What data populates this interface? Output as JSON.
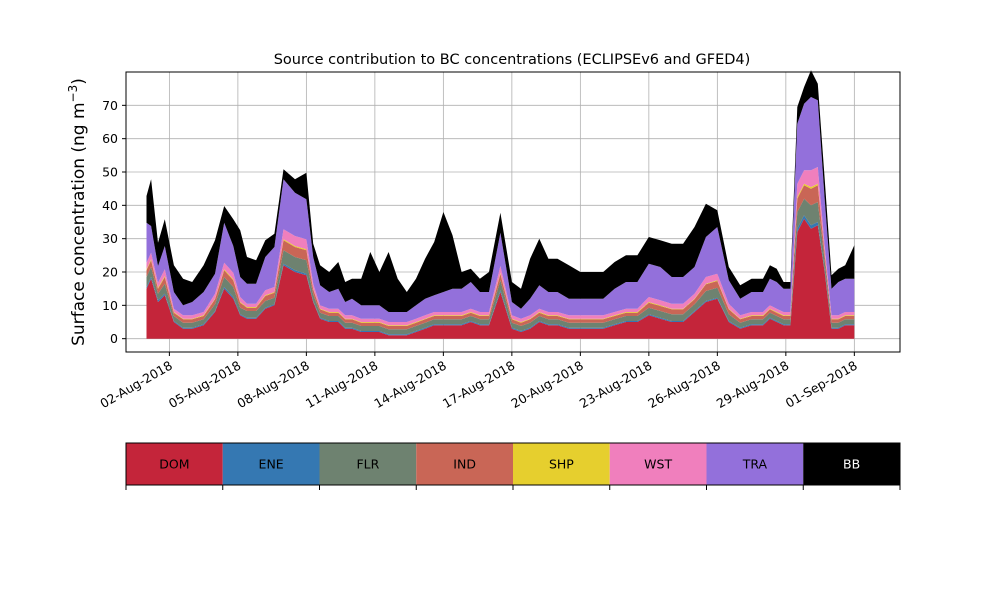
{
  "chart_data": {
    "type": "area",
    "title": "Source contribution to BC concentrations (ECLIPSEv6 and GFED4)",
    "ylabel_main": "Surface concentration (ng m",
    "ylabel_exp": "−3",
    "ylabel_close": ")",
    "xlabel": "",
    "ylim": [
      -4,
      80
    ],
    "yticks": [
      0,
      10,
      20,
      30,
      40,
      50,
      60,
      70
    ],
    "xlim_days": [
      -0.9,
      33.0
    ],
    "xticks": [
      {
        "label": "02-Aug-2018",
        "day": 1
      },
      {
        "label": "05-Aug-2018",
        "day": 4
      },
      {
        "label": "08-Aug-2018",
        "day": 7
      },
      {
        "label": "11-Aug-2018",
        "day": 10
      },
      {
        "label": "14-Aug-2018",
        "day": 13
      },
      {
        "label": "17-Aug-2018",
        "day": 16
      },
      {
        "label": "20-Aug-2018",
        "day": 19
      },
      {
        "label": "23-Aug-2018",
        "day": 22
      },
      {
        "label": "26-Aug-2018",
        "day": 25
      },
      {
        "label": "29-Aug-2018",
        "day": 28
      },
      {
        "label": "01-Sep-2018",
        "day": 31
      }
    ],
    "grid": true,
    "legend_position": "below",
    "x_day_zero": "01-Aug-2018",
    "x": [
      0.0,
      0.2,
      0.5,
      0.8,
      1.2,
      1.6,
      2.0,
      2.5,
      3.0,
      3.4,
      3.8,
      4.1,
      4.4,
      4.8,
      5.2,
      5.6,
      6.0,
      6.5,
      7.0,
      7.3,
      7.6,
      8.0,
      8.4,
      8.7,
      9.0,
      9.4,
      9.8,
      10.2,
      10.6,
      11.0,
      11.4,
      11.8,
      12.2,
      12.6,
      13.0,
      13.4,
      13.8,
      14.2,
      14.6,
      15.0,
      15.5,
      16.0,
      16.4,
      16.8,
      17.2,
      17.6,
      18.0,
      18.5,
      19.0,
      19.5,
      20.0,
      20.5,
      21.0,
      21.5,
      22.0,
      22.5,
      23.0,
      23.5,
      24.0,
      24.5,
      25.0,
      25.5,
      26.0,
      26.5,
      27.0,
      27.3,
      27.6,
      27.9,
      28.2,
      28.5,
      28.8,
      29.1,
      29.4,
      29.7,
      30.0,
      30.3,
      30.6,
      31.0
    ],
    "series": [
      {
        "name": "DOM",
        "color": "#c4253a",
        "values": [
          15,
          18,
          11,
          13,
          5,
          3,
          3,
          4,
          8,
          15,
          12,
          7,
          6,
          6,
          9,
          10,
          22,
          20,
          19,
          11,
          6,
          5,
          5,
          3,
          3,
          2,
          2,
          2,
          1,
          1,
          1,
          2,
          3,
          4,
          4,
          4,
          4,
          5,
          4,
          4,
          14,
          3,
          2,
          3,
          5,
          4,
          4,
          3,
          3,
          3,
          3,
          4,
          5,
          5,
          7,
          6,
          5,
          5,
          8,
          11,
          12,
          5,
          3,
          4,
          4,
          6,
          5,
          4,
          4,
          32,
          36,
          33,
          34,
          20,
          3,
          3,
          4,
          4
        ]
      },
      {
        "name": "ENE",
        "color": "#3578b2",
        "values": [
          0.5,
          0.5,
          0.5,
          0.5,
          0.3,
          0.3,
          0.3,
          0.3,
          0.3,
          0.5,
          0.5,
          0.3,
          0.3,
          0.3,
          0.3,
          0.3,
          0.5,
          0.5,
          0.5,
          0.3,
          0.3,
          0.3,
          0.3,
          0.3,
          0.3,
          0.3,
          0.3,
          0.3,
          0.3,
          0.3,
          0.3,
          0.3,
          0.3,
          0.3,
          0.3,
          0.3,
          0.3,
          0.3,
          0.3,
          0.3,
          0.5,
          0.3,
          0.3,
          0.3,
          0.3,
          0.3,
          0.3,
          0.3,
          0.3,
          0.3,
          0.3,
          0.3,
          0.3,
          0.3,
          0.3,
          0.3,
          0.3,
          0.3,
          0.3,
          0.3,
          0.3,
          0.3,
          0.3,
          0.3,
          0.3,
          0.3,
          0.3,
          0.3,
          0.3,
          1.0,
          1.0,
          1.0,
          1.0,
          0.5,
          0.3,
          0.3,
          0.3,
          0.3
        ]
      },
      {
        "name": "FLR",
        "color": "#6e8270",
        "values": [
          3,
          3,
          2,
          3,
          1.5,
          1.5,
          1.5,
          1.5,
          2,
          3,
          3,
          2,
          2,
          2,
          2,
          2,
          4,
          4,
          4,
          2,
          1.5,
          1.5,
          1.5,
          1.5,
          1.5,
          1.5,
          1.5,
          1.5,
          1.5,
          1.5,
          1.5,
          1.5,
          1.5,
          1.5,
          1.5,
          1.5,
          1.5,
          1.5,
          1.5,
          1.5,
          3,
          1.5,
          1.5,
          1.5,
          1.5,
          1.5,
          1.5,
          1.5,
          1.5,
          1.5,
          1.5,
          1.5,
          1.5,
          1.5,
          2,
          2,
          2,
          2,
          2,
          3,
          3,
          2,
          1.5,
          1.5,
          1.5,
          1.5,
          1.5,
          1.5,
          1.5,
          5,
          5,
          6,
          6,
          3,
          1.5,
          1.5,
          1.5,
          1.5
        ]
      },
      {
        "name": "IND",
        "color": "#c96656",
        "values": [
          2,
          2,
          1.5,
          2,
          1,
          1,
          1,
          1,
          1.5,
          2,
          2,
          1.5,
          1,
          1,
          1.5,
          1.5,
          3,
          3,
          3,
          1.5,
          1,
          1,
          1,
          1,
          1,
          1,
          1,
          1,
          1,
          1,
          1,
          1,
          1,
          1,
          1,
          1,
          1,
          1,
          1,
          1,
          2,
          1,
          1,
          1,
          1,
          1,
          1,
          1,
          1,
          1,
          1,
          1,
          1,
          1,
          1.5,
          1.5,
          1.5,
          1.5,
          1.5,
          2,
          2,
          1.5,
          1,
          1,
          1,
          1,
          1,
          1,
          1,
          4,
          4,
          5,
          5,
          2,
          1,
          1,
          1,
          1
        ]
      },
      {
        "name": "SHP",
        "color": "#e6cf2e",
        "values": [
          0.3,
          0.3,
          0.3,
          0.3,
          0.2,
          0.2,
          0.2,
          0.2,
          0.2,
          0.3,
          0.3,
          0.2,
          0.2,
          0.2,
          0.2,
          0.2,
          0.3,
          0.3,
          0.3,
          0.2,
          0.2,
          0.2,
          0.2,
          0.2,
          0.2,
          0.2,
          0.2,
          0.2,
          0.2,
          0.2,
          0.2,
          0.2,
          0.2,
          0.2,
          0.2,
          0.2,
          0.2,
          0.2,
          0.2,
          0.2,
          0.3,
          0.2,
          0.2,
          0.2,
          0.2,
          0.2,
          0.2,
          0.2,
          0.2,
          0.2,
          0.2,
          0.2,
          0.2,
          0.2,
          0.2,
          0.2,
          0.2,
          0.2,
          0.2,
          0.2,
          0.2,
          0.2,
          0.2,
          0.2,
          0.2,
          0.2,
          0.2,
          0.2,
          0.2,
          0.5,
          0.5,
          0.5,
          0.5,
          0.3,
          0.2,
          0.2,
          0.2,
          0.2
        ]
      },
      {
        "name": "WST",
        "color": "#f07fbd",
        "values": [
          2,
          2,
          1.5,
          2,
          1,
          1,
          1,
          1,
          1.5,
          2,
          2,
          1.5,
          1,
          1,
          1.5,
          1.5,
          3,
          3,
          3,
          1.5,
          1,
          1,
          1,
          1,
          1,
          1,
          1,
          1,
          1,
          1,
          1,
          1,
          1,
          1,
          1,
          1,
          1,
          1,
          1,
          1,
          2,
          1,
          1,
          1,
          1,
          1,
          1,
          1,
          1,
          1,
          1,
          1,
          1,
          1,
          1.5,
          1.5,
          1.5,
          1.5,
          1.5,
          2,
          2,
          1.5,
          1,
          1,
          1,
          1,
          1,
          1,
          1,
          4,
          4,
          5,
          5,
          2,
          1,
          1,
          1,
          1
        ]
      },
      {
        "name": "TRA",
        "color": "#9370db",
        "values": [
          12,
          8,
          5,
          7,
          5,
          3,
          4,
          6,
          6,
          12,
          8,
          6,
          6,
          6,
          10,
          12,
          15,
          13,
          12,
          8,
          6,
          5,
          6,
          4,
          5,
          4,
          4,
          4,
          3,
          3,
          3,
          4,
          5,
          5,
          6,
          7,
          7,
          8,
          6,
          6,
          10,
          4,
          3,
          5,
          7,
          6,
          6,
          5,
          5,
          5,
          5,
          7,
          8,
          8,
          10,
          10,
          8,
          8,
          8,
          12,
          14,
          7,
          5,
          6,
          6,
          8,
          8,
          7,
          7,
          18,
          20,
          22,
          20,
          14,
          8,
          10,
          10,
          10
        ]
      },
      {
        "name": "BB",
        "color": "#000000",
        "values": [
          8,
          14,
          7,
          8,
          8,
          8,
          6,
          8,
          10,
          5,
          8,
          14,
          8,
          7,
          5,
          4,
          3,
          4,
          8,
          4,
          6,
          6,
          8,
          6,
          6,
          8,
          16,
          10,
          18,
          10,
          6,
          8,
          12,
          16,
          24,
          16,
          5,
          4,
          4,
          6,
          6,
          6,
          6,
          12,
          14,
          10,
          10,
          10,
          8,
          8,
          8,
          8,
          8,
          8,
          8,
          8,
          10,
          10,
          12,
          10,
          5,
          4,
          4,
          4,
          4,
          4,
          4,
          2,
          2,
          5,
          5,
          8,
          5,
          6,
          4,
          4,
          4,
          10
        ]
      }
    ],
    "legend": [
      {
        "label": "DOM",
        "color": "#c4253a",
        "text_color": "#000000"
      },
      {
        "label": "ENE",
        "color": "#3578b2",
        "text_color": "#000000"
      },
      {
        "label": "FLR",
        "color": "#6e8270",
        "text_color": "#000000"
      },
      {
        "label": "IND",
        "color": "#c96656",
        "text_color": "#000000"
      },
      {
        "label": "SHP",
        "color": "#e6cf2e",
        "text_color": "#000000"
      },
      {
        "label": "WST",
        "color": "#f07fbd",
        "text_color": "#000000"
      },
      {
        "label": "TRA",
        "color": "#9370db",
        "text_color": "#000000"
      },
      {
        "label": "BB",
        "color": "#000000",
        "text_color": "#ffffff"
      }
    ]
  }
}
